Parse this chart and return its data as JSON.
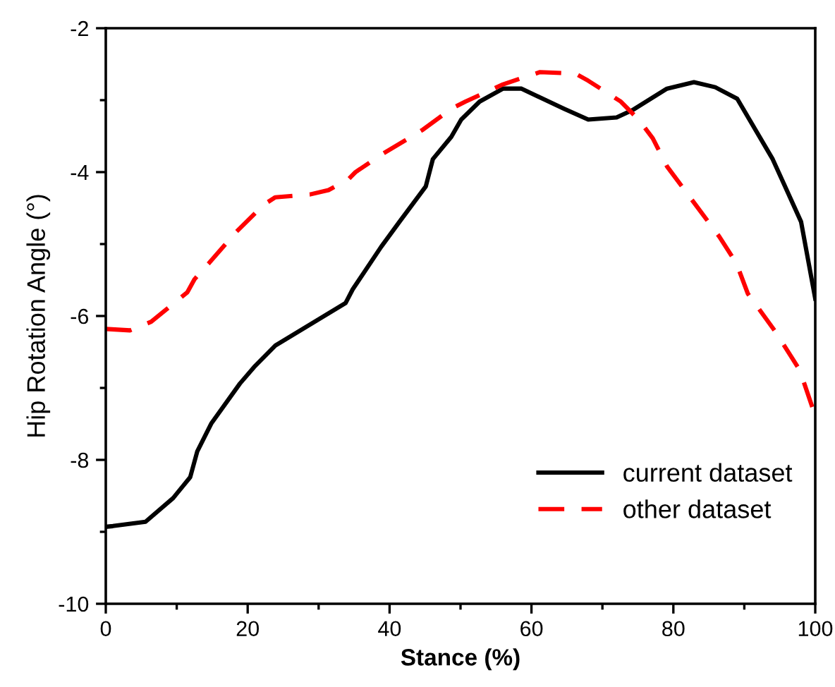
{
  "chart_data": {
    "type": "line",
    "xlabel": "Stance (%)",
    "ylabel": "Hip Rotation Angle (°)",
    "xlim": [
      0,
      100
    ],
    "ylim": [
      -10,
      -2
    ],
    "xticks": [
      0,
      20,
      40,
      60,
      80,
      100
    ],
    "yticks": [
      -10,
      -8,
      -6,
      -4,
      -2
    ],
    "grid": false,
    "legend": "bottom right",
    "series": [
      {
        "name": "current dataset",
        "color": "#000000",
        "line_style": "solid",
        "x": [
          0,
          1,
          5.6,
          9.5,
          11.9,
          12.9,
          14.9,
          18.9,
          20.9,
          23.9,
          33.8,
          34.8,
          38.8,
          41.4,
          45.1,
          46.1,
          48.7,
          50.1,
          52.7,
          56,
          58.6,
          64.6,
          68,
          72,
          74.2,
          79.1,
          82.9,
          85.9,
          89,
          94,
          98,
          100
        ],
        "values": [
          -8.93,
          -8.92,
          -8.86,
          -8.53,
          -8.24,
          -7.88,
          -7.49,
          -6.94,
          -6.71,
          -6.41,
          -5.82,
          -5.63,
          -5.04,
          -4.69,
          -4.2,
          -3.82,
          -3.51,
          -3.27,
          -3.02,
          -2.84,
          -2.84,
          -3.12,
          -3.27,
          -3.24,
          -3.14,
          -2.84,
          -2.75,
          -2.82,
          -2.98,
          -3.82,
          -4.69,
          -5.76
        ]
      },
      {
        "name": "other dataset",
        "color": "#ff0000",
        "line_style": "dashed",
        "x": [
          0,
          3.4,
          6.4,
          11.5,
          12.5,
          14.5,
          18.3,
          22.3,
          23.9,
          28.8,
          31.4,
          34.2,
          35.2,
          38.8,
          44.7,
          48.7,
          50.7,
          56,
          61.2,
          66.2,
          68,
          72.6,
          75.1,
          77.1,
          79.1,
          83.1,
          86.5,
          88.9,
          90.5,
          94.4,
          97.8,
          99.8
        ],
        "values": [
          -6.18,
          -6.2,
          -6.08,
          -5.67,
          -5.49,
          -5.27,
          -4.84,
          -4.45,
          -4.35,
          -4.31,
          -4.25,
          -4.1,
          -4.0,
          -3.76,
          -3.41,
          -3.12,
          -3.02,
          -2.78,
          -2.61,
          -2.63,
          -2.73,
          -3.02,
          -3.27,
          -3.53,
          -3.92,
          -4.45,
          -4.9,
          -5.27,
          -5.69,
          -6.22,
          -6.75,
          -7.33
        ]
      }
    ]
  }
}
